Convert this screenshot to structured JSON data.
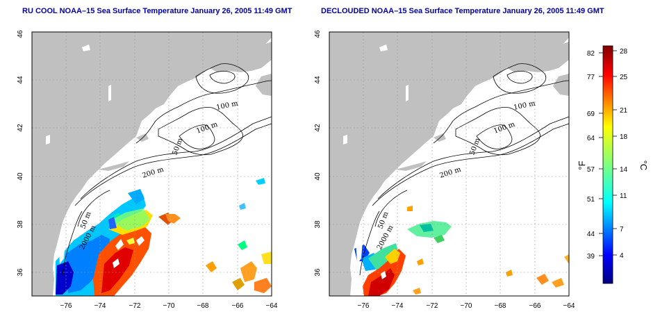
{
  "panels": [
    {
      "id": "left",
      "title": "RU COOL NOAA–15 Sea Surface Temperature January 26, 2005 11:49 GMT"
    },
    {
      "id": "right",
      "title": "DECLOUDED NOAA–15 Sea Surface Temperature January 26, 2005 11:49 GMT"
    }
  ],
  "map": {
    "lon_range": [
      -77,
      -63
    ],
    "lat_range": [
      35,
      46
    ],
    "lon_ticks": [
      "−76",
      "−74",
      "−72",
      "−70",
      "−68",
      "−66",
      "−64"
    ],
    "lat_ticks": [
      "36",
      "38",
      "40",
      "42",
      "44",
      "46"
    ],
    "contour_labels": [
      "100 m",
      "100 m",
      "50 m",
      "200 m",
      "50 m",
      "2000 m"
    ],
    "land_color": "#c0c0c0",
    "grid": "dotted"
  },
  "colorbar": {
    "fahrenheit_ticks": [
      "82",
      "77",
      "69",
      "64",
      "57",
      "51",
      "44",
      "39"
    ],
    "celsius_ticks": [
      "28",
      "25",
      "21",
      "18",
      "14",
      "11",
      "7",
      "4"
    ],
    "fahrenheit_unit": "°F",
    "celsius_unit": "°C",
    "colormap": "jet"
  }
}
